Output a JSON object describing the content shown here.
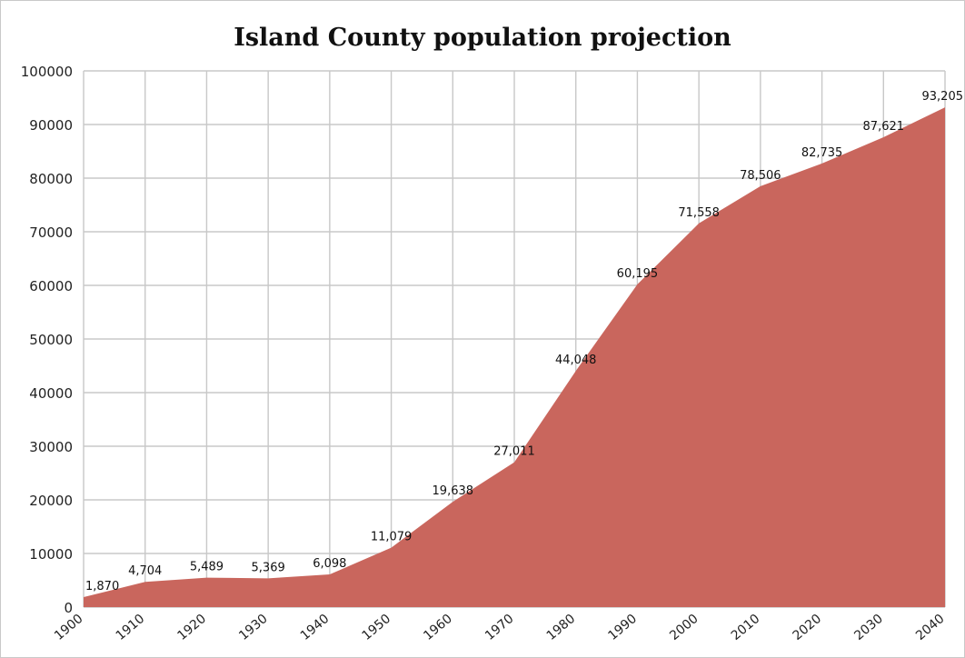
{
  "chart_data": {
    "type": "area",
    "title": "Island County population projection",
    "xlabel": "",
    "ylabel": "",
    "categories": [
      "1900",
      "1910",
      "1920",
      "1930",
      "1940",
      "1950",
      "1960",
      "1970",
      "1980",
      "1990",
      "2000",
      "2010",
      "2020",
      "2030",
      "2040"
    ],
    "series": [
      {
        "values": [
          1870,
          4704,
          5489,
          5369,
          6098,
          11079,
          19638,
          27011,
          44048,
          60195,
          71558,
          78506,
          82735,
          87621,
          93205
        ],
        "labels": [
          "1,870",
          "4,704",
          "5,489",
          "5,369",
          "6,098",
          "11,079",
          "19,638",
          "27,011",
          "44,048",
          "60,195",
          "71,558",
          "78,506",
          "82,735",
          "87,621",
          "93,205"
        ]
      }
    ],
    "ylim": [
      0,
      100000
    ],
    "yticks": [
      "0",
      "10000",
      "20000",
      "30000",
      "40000",
      "50000",
      "60000",
      "70000",
      "80000",
      "90000",
      "100000"
    ],
    "grid": true,
    "fill_color": "#c9665d"
  }
}
